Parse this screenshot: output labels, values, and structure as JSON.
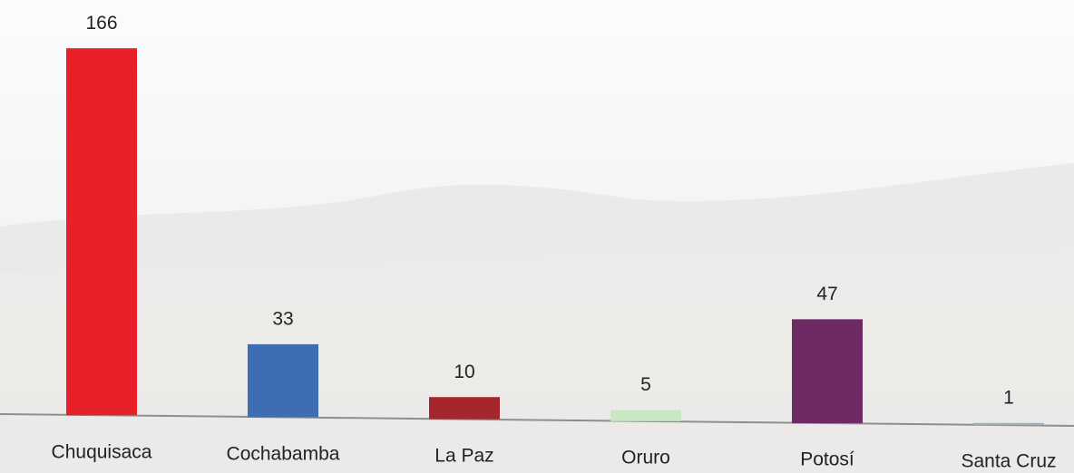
{
  "chart_data": {
    "type": "bar",
    "categories": [
      "Chuquisaca",
      "Cochabamba",
      "La Paz",
      "Oruro",
      "Potosí",
      "Santa Cruz"
    ],
    "values": [
      166,
      33,
      10,
      5,
      47,
      1
    ],
    "colors": [
      "#e8202a",
      "#3f6db3",
      "#a3272b",
      "#c9e7c3",
      "#6d2a63",
      "#9fb0b8"
    ]
  }
}
